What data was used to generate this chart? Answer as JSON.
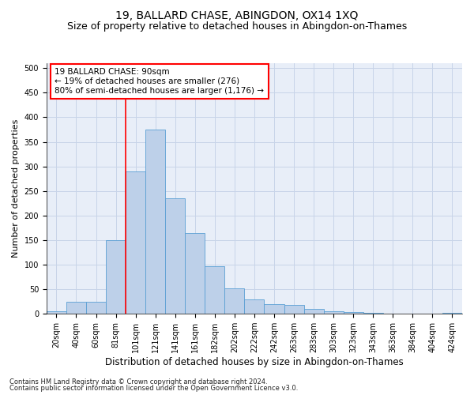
{
  "title": "19, BALLARD CHASE, ABINGDON, OX14 1XQ",
  "subtitle": "Size of property relative to detached houses in Abingdon-on-Thames",
  "xlabel": "Distribution of detached houses by size in Abingdon-on-Thames",
  "ylabel": "Number of detached properties",
  "footnote1": "Contains HM Land Registry data © Crown copyright and database right 2024.",
  "footnote2": "Contains public sector information licensed under the Open Government Licence v3.0.",
  "bin_labels": [
    "20sqm",
    "40sqm",
    "60sqm",
    "81sqm",
    "101sqm",
    "121sqm",
    "141sqm",
    "161sqm",
    "182sqm",
    "202sqm",
    "222sqm",
    "242sqm",
    "263sqm",
    "283sqm",
    "303sqm",
    "323sqm",
    "343sqm",
    "363sqm",
    "384sqm",
    "404sqm",
    "424sqm"
  ],
  "bar_heights": [
    5,
    25,
    25,
    150,
    290,
    375,
    235,
    165,
    97,
    52,
    30,
    20,
    18,
    10,
    5,
    3,
    2,
    1,
    1,
    1,
    2
  ],
  "bar_color": "#bdd0e9",
  "bar_edge_color": "#5a9fd4",
  "grid_color": "#c8d4e8",
  "vline_color": "red",
  "annotation_text": "19 BALLARD CHASE: 90sqm\n← 19% of detached houses are smaller (276)\n80% of semi-detached houses are larger (1,176) →",
  "annotation_box_color": "white",
  "annotation_box_edge": "red",
  "ylim": [
    0,
    510
  ],
  "yticks": [
    0,
    50,
    100,
    150,
    200,
    250,
    300,
    350,
    400,
    450,
    500
  ],
  "bg_color": "#e8eef8",
  "title_fontsize": 10,
  "subtitle_fontsize": 9,
  "tick_fontsize": 7,
  "ylabel_fontsize": 8,
  "xlabel_fontsize": 8.5,
  "footnote_fontsize": 6
}
